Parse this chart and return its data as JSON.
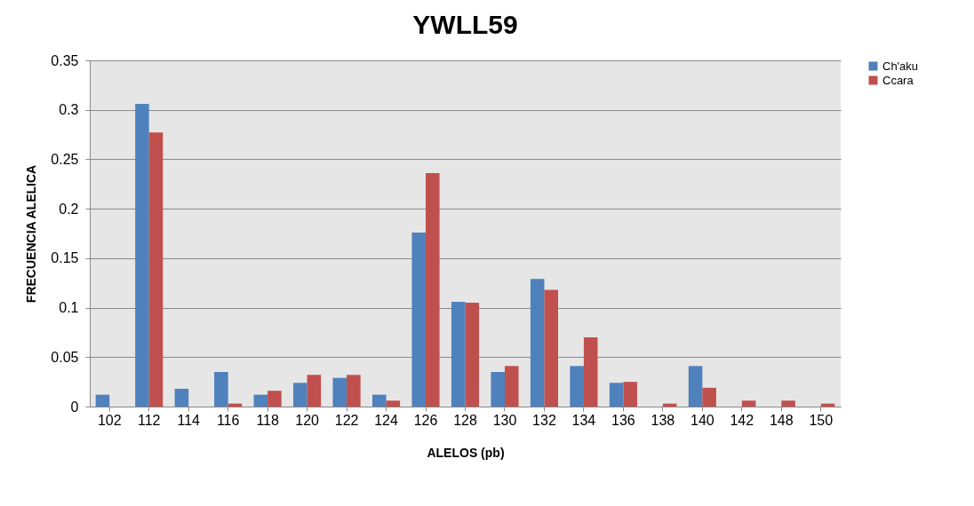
{
  "chart_data": {
    "type": "bar",
    "title": "YWLL59",
    "xlabel": "ALELOS (pb)",
    "ylabel": "FRECUENCIA ALELICA",
    "categories": [
      "102",
      "112",
      "114",
      "116",
      "118",
      "120",
      "122",
      "124",
      "126",
      "128",
      "130",
      "132",
      "134",
      "136",
      "138",
      "140",
      "142",
      "148",
      "150"
    ],
    "series": [
      {
        "name": "Ch'aku",
        "color": "#4f81bd",
        "values": [
          0.012,
          0.306,
          0.018,
          0.035,
          0.012,
          0.024,
          0.029,
          0.012,
          0.176,
          0.106,
          0.035,
          0.129,
          0.041,
          0.024,
          0,
          0.041,
          0,
          0,
          0
        ]
      },
      {
        "name": "Ccara",
        "color": "#c0504d",
        "values": [
          0,
          0.277,
          0,
          0.003,
          0.016,
          0.032,
          0.032,
          0.006,
          0.236,
          0.105,
          0.041,
          0.118,
          0.07,
          0.025,
          0.003,
          0.019,
          0.006,
          0.006,
          0.003
        ]
      }
    ],
    "ylim": [
      0,
      0.35
    ],
    "yticks": [
      0,
      0.05,
      0.1,
      0.15,
      0.2,
      0.25,
      0.3,
      0.35
    ],
    "grid": "y",
    "legend": "right"
  }
}
